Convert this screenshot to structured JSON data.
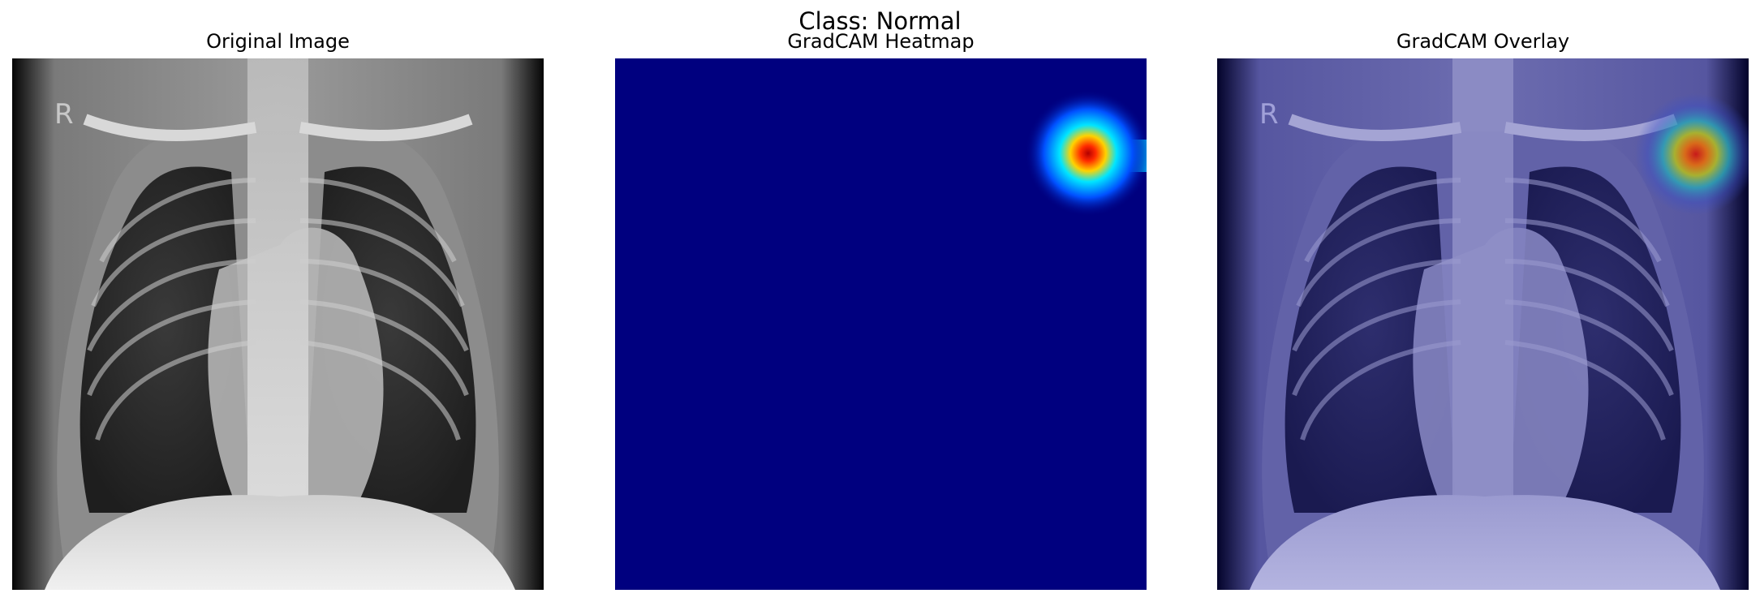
{
  "figure": {
    "title": "Class: Normal"
  },
  "panels": [
    {
      "title": "Original Image"
    },
    {
      "title": "GradCAM Heatmap"
    },
    {
      "title": "GradCAM Overlay"
    }
  ],
  "image": {
    "marker_letter": "R"
  },
  "colors": {
    "heatmap_background": "#00007f",
    "heatmap_peak": "#b30000",
    "overlay_tint": "#2b2b8a"
  }
}
